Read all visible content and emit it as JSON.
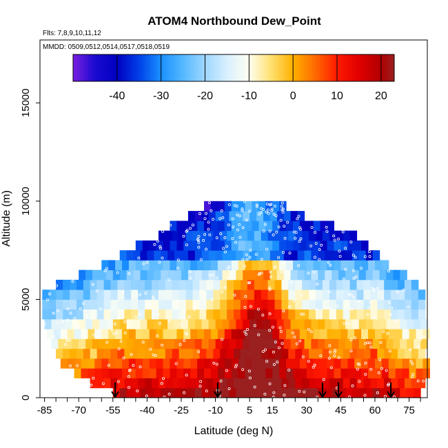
{
  "chart_data": {
    "type": "heatmap",
    "title": "ATOM4 Northbound Dew_Point",
    "flights_label": "Flts: 7,8,9,10,11,12",
    "dates_label": "MMDD: 0509,0512,0514,0517,0518,0519",
    "xlabel": "Latitude (deg N)",
    "ylabel": "Altitude (m)",
    "xlim": [
      -87,
      83
    ],
    "ylim": [
      0,
      18200
    ],
    "x_ticks": [
      "-85",
      "-70",
      "-55",
      "-40",
      "-25",
      "-10",
      "5",
      "15",
      "30",
      "45",
      "60",
      "75"
    ],
    "x_tick_values": [
      -85,
      -70,
      -55,
      -40,
      -25,
      -10,
      5,
      15,
      30,
      45,
      60,
      75
    ],
    "y_ticks": [
      "0",
      "5000",
      "10000",
      "15000"
    ],
    "y_tick_values": [
      0,
      5000,
      10000,
      15000
    ],
    "colorbar": {
      "range": [
        -50,
        23
      ],
      "ticks": [
        "-40",
        "-30",
        "-20",
        "-10",
        "0",
        "10",
        "20"
      ],
      "tick_values": [
        -40,
        -30,
        -20,
        -10,
        0,
        10,
        20
      ],
      "colors": [
        [
          -50,
          "#7a1fe0"
        ],
        [
          -45,
          "#1a0ad0"
        ],
        [
          -40,
          "#0000c0"
        ],
        [
          -35,
          "#0040e8"
        ],
        [
          -30,
          "#1a90ff"
        ],
        [
          -25,
          "#55b8ff"
        ],
        [
          -20,
          "#9fd6ff"
        ],
        [
          -15,
          "#d8f0ff"
        ],
        [
          -10,
          "#fffff0"
        ],
        [
          -5,
          "#ffe070"
        ],
        [
          0,
          "#ffb000"
        ],
        [
          5,
          "#ff6a00"
        ],
        [
          10,
          "#ff1a00"
        ],
        [
          15,
          "#e00000"
        ],
        [
          20,
          "#b00000"
        ],
        [
          23,
          "#9a2020"
        ]
      ]
    },
    "altitude_bands_m": [
      250,
      750,
      1250,
      1750,
      2250,
      2750,
      3250,
      3750,
      4250,
      4750,
      5250,
      5750,
      6250,
      6750,
      7250,
      7750,
      8250,
      8750,
      9250,
      9750
    ],
    "band_extents_deg": [
      [
        -55,
        80
      ],
      [
        -65,
        82
      ],
      [
        -72,
        82
      ],
      [
        -78,
        82
      ],
      [
        -80,
        82
      ],
      [
        -82,
        82
      ],
      [
        -84,
        82
      ],
      [
        -85,
        82
      ],
      [
        -86,
        82
      ],
      [
        -86,
        82
      ],
      [
        -86,
        82
      ],
      [
        -80,
        78
      ],
      [
        -70,
        72
      ],
      [
        -60,
        65
      ],
      [
        -52,
        60
      ],
      [
        -45,
        55
      ],
      [
        -35,
        50
      ],
      [
        -30,
        40
      ],
      [
        -22,
        28
      ],
      [
        -15,
        20
      ]
    ],
    "profile_latitudes_deg": [
      -54,
      -9,
      37,
      44,
      67
    ],
    "notes": "Dew point (deg C): warm/moist (~15-22) near surface at low latitudes, decreasing to ~-45 aloft; moist tongue extends upward near the equator (5-15N)."
  }
}
